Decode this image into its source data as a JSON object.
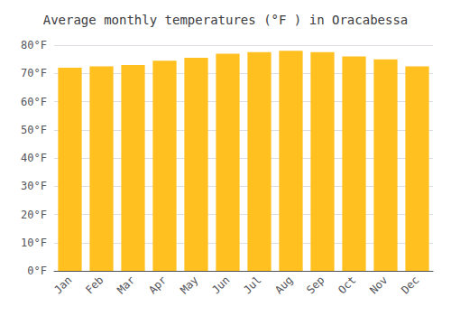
{
  "chart_data": {
    "type": "bar",
    "title": "Average monthly temperatures (°F ) in Oracabessa",
    "categories": [
      "Jan",
      "Feb",
      "Mar",
      "Apr",
      "May",
      "Jun",
      "Jul",
      "Aug",
      "Sep",
      "Oct",
      "Nov",
      "Dec"
    ],
    "values": [
      72,
      72.5,
      73,
      74.5,
      75.5,
      77,
      77.5,
      78,
      77.5,
      76,
      75,
      72.5
    ],
    "color": "#FFC020",
    "ylim": [
      0,
      80
    ],
    "yticks": [
      {
        "value": 0,
        "label": "0°F"
      },
      {
        "value": 10,
        "label": "10°F"
      },
      {
        "value": 20,
        "label": "20°F"
      },
      {
        "value": 30,
        "label": "30°F"
      },
      {
        "value": 40,
        "label": "40°F"
      },
      {
        "value": 50,
        "label": "50°F"
      },
      {
        "value": 60,
        "label": "60°F"
      },
      {
        "value": 70,
        "label": "70°F"
      },
      {
        "value": 80,
        "label": "80°F"
      }
    ],
    "grid": true
  }
}
